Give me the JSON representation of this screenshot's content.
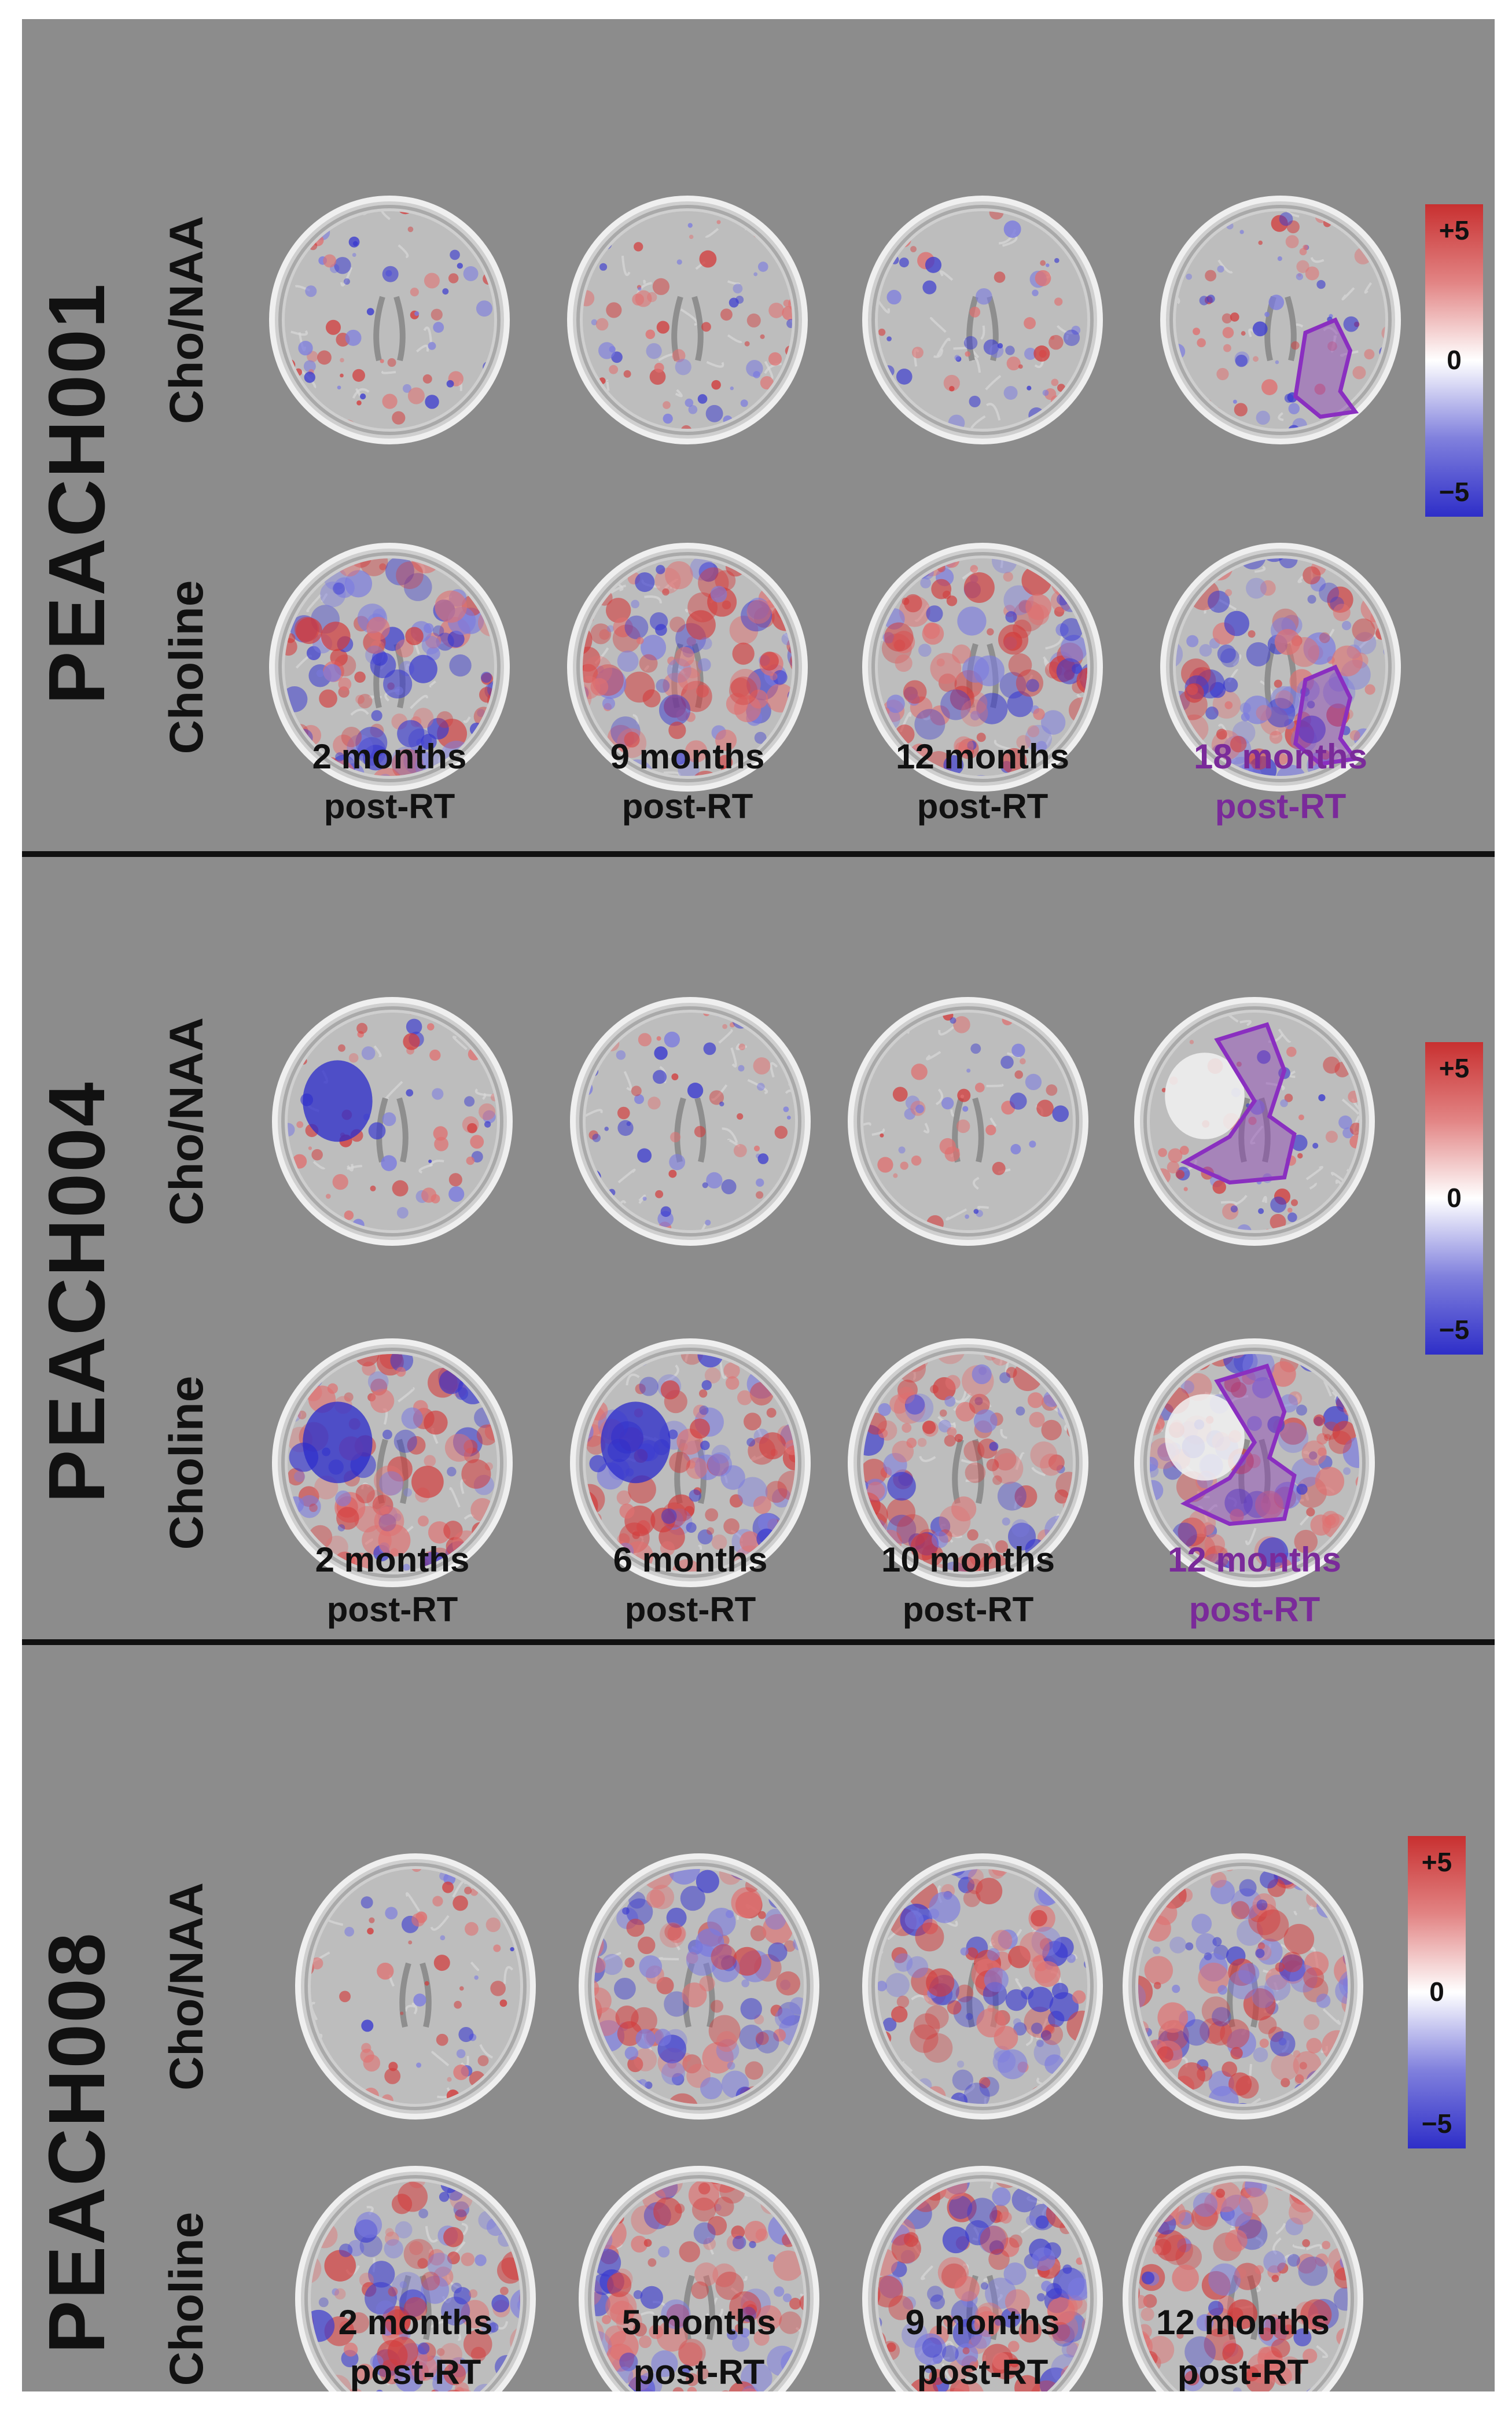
{
  "colorbar": {
    "max_label": "+5",
    "mid_label": "0",
    "min_label": "−5"
  },
  "row_labels": {
    "ratio": "Cho/NAA",
    "choline": "Choline"
  },
  "colors": {
    "positive": "#c83030",
    "negative": "#2e2ec8",
    "highlight": "#7a2a9a",
    "background": "#8c8c8c"
  },
  "panels": [
    {
      "patient": "PEACH001",
      "timepoints": [
        {
          "l1": "2 months",
          "l2": "post-RT",
          "highlight": false
        },
        {
          "l1": "9 months",
          "l2": "post-RT",
          "highlight": false
        },
        {
          "l1": "12 months",
          "l2": "post-RT",
          "highlight": false
        },
        {
          "l1": "18 months",
          "l2": "post-RT",
          "highlight": true
        }
      ]
    },
    {
      "patient": "PEACH004",
      "timepoints": [
        {
          "l1": "2 months",
          "l2": "post-RT",
          "highlight": false
        },
        {
          "l1": "6 months",
          "l2": "post-RT",
          "highlight": false
        },
        {
          "l1": "10 months",
          "l2": "post-RT",
          "highlight": false
        },
        {
          "l1": "12 months",
          "l2": "post-RT",
          "highlight": true
        }
      ]
    },
    {
      "patient": "PEACH008",
      "timepoints": [
        {
          "l1": "2 months",
          "l2": "post-RT",
          "highlight": false
        },
        {
          "l1": "5 months",
          "l2": "post-RT",
          "highlight": false
        },
        {
          "l1": "9 months",
          "l2": "post-RT",
          "highlight": false
        },
        {
          "l1": "12 months",
          "l2": "post-RT",
          "highlight": false
        }
      ]
    }
  ]
}
